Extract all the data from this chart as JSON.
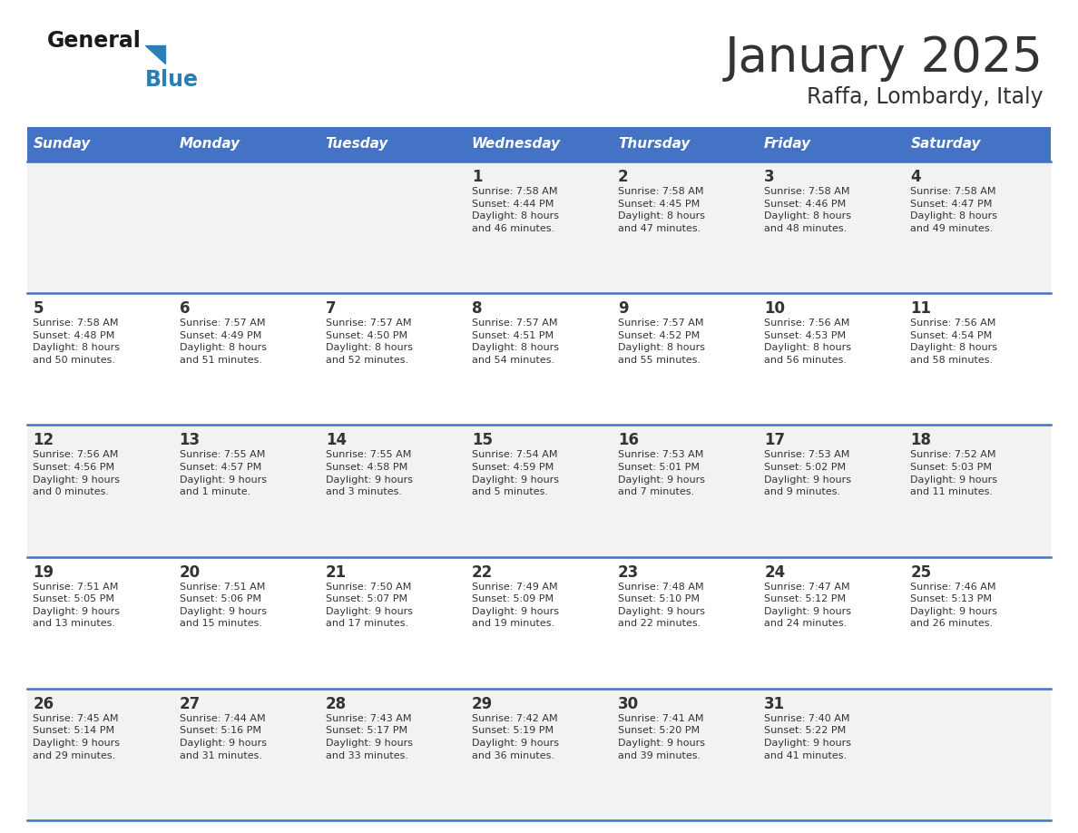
{
  "title": "January 2025",
  "subtitle": "Raffa, Lombardy, Italy",
  "header_bg": "#4472C4",
  "header_text_color": "#FFFFFF",
  "row_bg_odd": "#F2F2F2",
  "row_bg_even": "#FFFFFF",
  "separator_color": "#4472C4",
  "text_color": "#333333",
  "days_of_week": [
    "Sunday",
    "Monday",
    "Tuesday",
    "Wednesday",
    "Thursday",
    "Friday",
    "Saturday"
  ],
  "calendar": [
    [
      {
        "day": "",
        "info": ""
      },
      {
        "day": "",
        "info": ""
      },
      {
        "day": "",
        "info": ""
      },
      {
        "day": "1",
        "info": "Sunrise: 7:58 AM\nSunset: 4:44 PM\nDaylight: 8 hours\nand 46 minutes."
      },
      {
        "day": "2",
        "info": "Sunrise: 7:58 AM\nSunset: 4:45 PM\nDaylight: 8 hours\nand 47 minutes."
      },
      {
        "day": "3",
        "info": "Sunrise: 7:58 AM\nSunset: 4:46 PM\nDaylight: 8 hours\nand 48 minutes."
      },
      {
        "day": "4",
        "info": "Sunrise: 7:58 AM\nSunset: 4:47 PM\nDaylight: 8 hours\nand 49 minutes."
      }
    ],
    [
      {
        "day": "5",
        "info": "Sunrise: 7:58 AM\nSunset: 4:48 PM\nDaylight: 8 hours\nand 50 minutes."
      },
      {
        "day": "6",
        "info": "Sunrise: 7:57 AM\nSunset: 4:49 PM\nDaylight: 8 hours\nand 51 minutes."
      },
      {
        "day": "7",
        "info": "Sunrise: 7:57 AM\nSunset: 4:50 PM\nDaylight: 8 hours\nand 52 minutes."
      },
      {
        "day": "8",
        "info": "Sunrise: 7:57 AM\nSunset: 4:51 PM\nDaylight: 8 hours\nand 54 minutes."
      },
      {
        "day": "9",
        "info": "Sunrise: 7:57 AM\nSunset: 4:52 PM\nDaylight: 8 hours\nand 55 minutes."
      },
      {
        "day": "10",
        "info": "Sunrise: 7:56 AM\nSunset: 4:53 PM\nDaylight: 8 hours\nand 56 minutes."
      },
      {
        "day": "11",
        "info": "Sunrise: 7:56 AM\nSunset: 4:54 PM\nDaylight: 8 hours\nand 58 minutes."
      }
    ],
    [
      {
        "day": "12",
        "info": "Sunrise: 7:56 AM\nSunset: 4:56 PM\nDaylight: 9 hours\nand 0 minutes."
      },
      {
        "day": "13",
        "info": "Sunrise: 7:55 AM\nSunset: 4:57 PM\nDaylight: 9 hours\nand 1 minute."
      },
      {
        "day": "14",
        "info": "Sunrise: 7:55 AM\nSunset: 4:58 PM\nDaylight: 9 hours\nand 3 minutes."
      },
      {
        "day": "15",
        "info": "Sunrise: 7:54 AM\nSunset: 4:59 PM\nDaylight: 9 hours\nand 5 minutes."
      },
      {
        "day": "16",
        "info": "Sunrise: 7:53 AM\nSunset: 5:01 PM\nDaylight: 9 hours\nand 7 minutes."
      },
      {
        "day": "17",
        "info": "Sunrise: 7:53 AM\nSunset: 5:02 PM\nDaylight: 9 hours\nand 9 minutes."
      },
      {
        "day": "18",
        "info": "Sunrise: 7:52 AM\nSunset: 5:03 PM\nDaylight: 9 hours\nand 11 minutes."
      }
    ],
    [
      {
        "day": "19",
        "info": "Sunrise: 7:51 AM\nSunset: 5:05 PM\nDaylight: 9 hours\nand 13 minutes."
      },
      {
        "day": "20",
        "info": "Sunrise: 7:51 AM\nSunset: 5:06 PM\nDaylight: 9 hours\nand 15 minutes."
      },
      {
        "day": "21",
        "info": "Sunrise: 7:50 AM\nSunset: 5:07 PM\nDaylight: 9 hours\nand 17 minutes."
      },
      {
        "day": "22",
        "info": "Sunrise: 7:49 AM\nSunset: 5:09 PM\nDaylight: 9 hours\nand 19 minutes."
      },
      {
        "day": "23",
        "info": "Sunrise: 7:48 AM\nSunset: 5:10 PM\nDaylight: 9 hours\nand 22 minutes."
      },
      {
        "day": "24",
        "info": "Sunrise: 7:47 AM\nSunset: 5:12 PM\nDaylight: 9 hours\nand 24 minutes."
      },
      {
        "day": "25",
        "info": "Sunrise: 7:46 AM\nSunset: 5:13 PM\nDaylight: 9 hours\nand 26 minutes."
      }
    ],
    [
      {
        "day": "26",
        "info": "Sunrise: 7:45 AM\nSunset: 5:14 PM\nDaylight: 9 hours\nand 29 minutes."
      },
      {
        "day": "27",
        "info": "Sunrise: 7:44 AM\nSunset: 5:16 PM\nDaylight: 9 hours\nand 31 minutes."
      },
      {
        "day": "28",
        "info": "Sunrise: 7:43 AM\nSunset: 5:17 PM\nDaylight: 9 hours\nand 33 minutes."
      },
      {
        "day": "29",
        "info": "Sunrise: 7:42 AM\nSunset: 5:19 PM\nDaylight: 9 hours\nand 36 minutes."
      },
      {
        "day": "30",
        "info": "Sunrise: 7:41 AM\nSunset: 5:20 PM\nDaylight: 9 hours\nand 39 minutes."
      },
      {
        "day": "31",
        "info": "Sunrise: 7:40 AM\nSunset: 5:22 PM\nDaylight: 9 hours\nand 41 minutes."
      },
      {
        "day": "",
        "info": ""
      }
    ]
  ],
  "logo_general_color": "#1a1a1a",
  "logo_blue_color": "#2980B9",
  "logo_triangle_color": "#2980B9",
  "fig_width": 11.88,
  "fig_height": 9.18,
  "dpi": 100
}
